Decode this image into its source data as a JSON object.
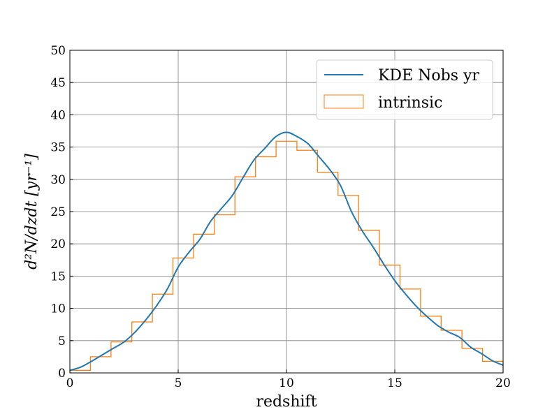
{
  "chart_data": {
    "type": "line",
    "xlabel": "redshift",
    "ylabel": "d²N/dzdt [yr⁻¹]",
    "xlim": [
      0,
      20
    ],
    "ylim": [
      0,
      50
    ],
    "x_ticks": [
      "0",
      "5",
      "10",
      "15",
      "20"
    ],
    "y_ticks": [
      "0",
      "5",
      "10",
      "15",
      "20",
      "25",
      "30",
      "35",
      "40",
      "45",
      "50"
    ],
    "grid": true,
    "legend_position": "upper-right",
    "colors": {
      "kde": "#1f77b4",
      "intrinsic": "#ff7f0e",
      "grid": "#808080"
    },
    "series": [
      {
        "name": "KDE Nobs yr",
        "style": "line",
        "x": [
          0,
          0.5,
          1,
          1.5,
          2,
          2.5,
          3,
          3.5,
          4,
          4.5,
          5,
          5.5,
          6,
          6.5,
          7,
          7.5,
          8,
          8.5,
          9,
          9.5,
          10,
          10.5,
          11,
          11.5,
          12,
          12.5,
          13,
          13.5,
          14,
          14.5,
          15,
          15.5,
          16,
          16.5,
          17,
          17.5,
          18,
          18.5,
          19,
          19.5,
          20
        ],
        "y": [
          0.4,
          0.9,
          1.8,
          2.8,
          3.8,
          4.8,
          6.3,
          8.2,
          10.4,
          13.0,
          16.4,
          18.7,
          20.7,
          23.5,
          25.5,
          27.5,
          30.3,
          33.0,
          34.8,
          36.6,
          37.3,
          36.6,
          35.5,
          33.5,
          31.5,
          29.0,
          25.0,
          22.0,
          19.5,
          16.8,
          14.3,
          12.2,
          10.3,
          8.7,
          7.3,
          6.3,
          5.5,
          4.0,
          3.0,
          1.9,
          1.2
        ]
      },
      {
        "name": "intrinsic",
        "style": "step",
        "bin_edges": [
          0,
          0.95,
          1.9,
          2.86,
          3.81,
          4.76,
          5.71,
          6.67,
          7.62,
          8.57,
          9.52,
          10.48,
          11.43,
          12.38,
          13.33,
          14.29,
          15.24,
          16.19,
          17.14,
          18.1,
          19.05,
          20
        ],
        "values": [
          0.4,
          2.5,
          4.8,
          7.9,
          12.2,
          17.8,
          21.5,
          24.5,
          30.4,
          33.5,
          35.9,
          34.5,
          31.1,
          27.5,
          22.1,
          16.7,
          13.0,
          8.8,
          6.6,
          3.8,
          1.8
        ]
      }
    ]
  }
}
